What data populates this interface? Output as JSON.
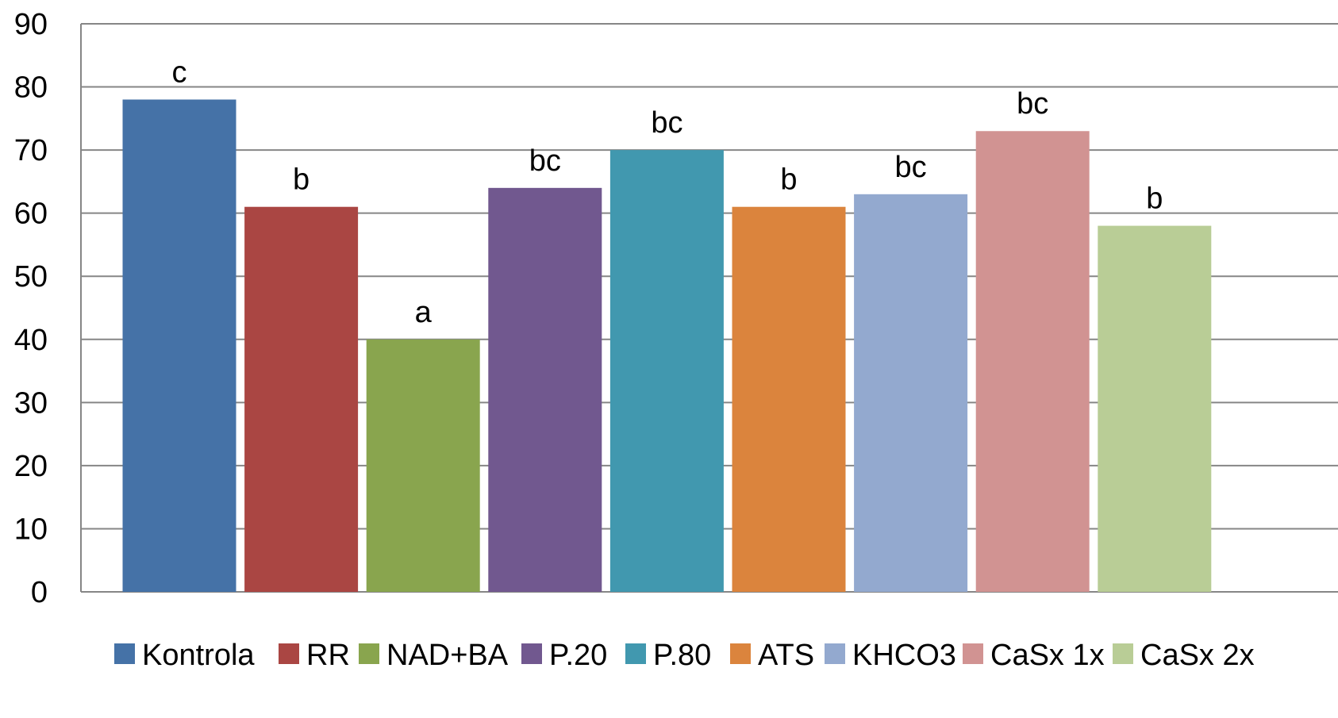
{
  "chart_data": {
    "type": "bar",
    "categories": [
      "Kontrola",
      "RR",
      "NAD+BA",
      "P.20",
      "P.80",
      "ATS",
      "KHCO3",
      "CaSx 1x",
      "CaSx 2x"
    ],
    "values": [
      78,
      61,
      40,
      64,
      70,
      61,
      63,
      73,
      58
    ],
    "data_labels": [
      "c",
      "b",
      "a",
      "bc",
      "bc",
      "b",
      "bc",
      "bc",
      "b"
    ],
    "colors": [
      "#4572A7",
      "#AA4643",
      "#89A54E",
      "#71588F",
      "#4198AF",
      "#DB843D",
      "#93A9CF",
      "#D19392",
      "#B9CD96"
    ],
    "ylim": [
      0,
      90
    ],
    "yticks": [
      0,
      10,
      20,
      30,
      40,
      50,
      60,
      70,
      80,
      90
    ],
    "grid": true,
    "legend_position": "bottom",
    "title": "",
    "xlabel": "",
    "ylabel": ""
  }
}
